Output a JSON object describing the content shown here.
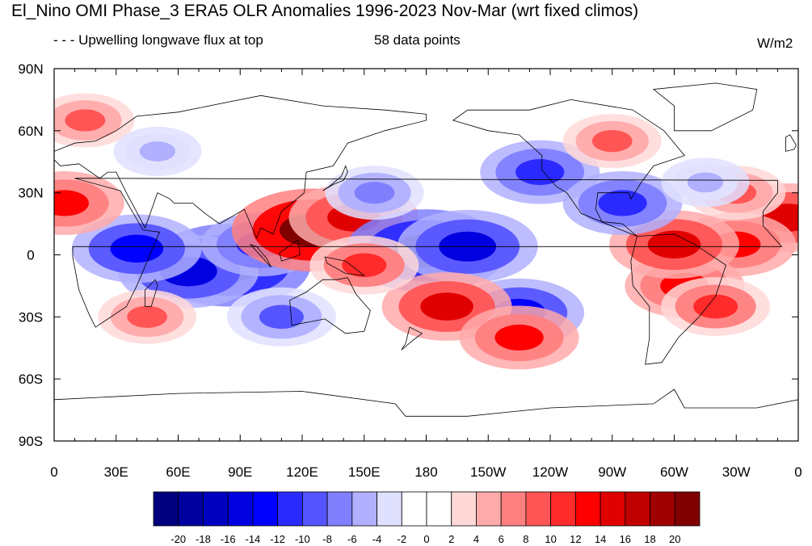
{
  "title": "El_Nino OMI Phase_3 ERA5 OLR Anomalies 1996-2023 Nov-Mar (wrt fixed climos)",
  "subtitle": "- - - Upwelling longwave flux at top",
  "data_points_label": "58 data points",
  "units": "W/m2",
  "axes": {
    "lat_ticks": [
      "90N",
      "60N",
      "30N",
      "0",
      "30S",
      "60S",
      "90S"
    ],
    "lon_ticks": [
      "0",
      "30E",
      "60E",
      "90E",
      "120E",
      "150E",
      "180",
      "150W",
      "120W",
      "90W",
      "60W",
      "30W",
      "0"
    ]
  },
  "colorbar": {
    "labels": [
      "-20",
      "-18",
      "-16",
      "-14",
      "-12",
      "-10",
      "-8",
      "-6",
      "-4",
      "-2",
      "0",
      "2",
      "4",
      "6",
      "8",
      "10",
      "12",
      "14",
      "16",
      "18",
      "20"
    ],
    "colors": [
      "#00007f",
      "#0000a0",
      "#0000c0",
      "#0000e0",
      "#0000ff",
      "#2a2aff",
      "#5555ff",
      "#8080ff",
      "#b0b0ff",
      "#e0e0ff",
      "#ffffff",
      "#ffffff",
      "#ffd8d8",
      "#ffaaaa",
      "#ff8080",
      "#ff5555",
      "#ff2a2a",
      "#ff0000",
      "#e00000",
      "#c00000",
      "#a00000",
      "#800000"
    ]
  },
  "anomalies": [
    {
      "lon": 85,
      "lat": -5,
      "v": -20
    },
    {
      "lon": 65,
      "lat": -8,
      "v": -16
    },
    {
      "lon": 100,
      "lat": 5,
      "v": -12
    },
    {
      "lon": 40,
      "lat": 3,
      "v": -14
    },
    {
      "lon": 125,
      "lat": 12,
      "v": 20
    },
    {
      "lon": 145,
      "lat": 18,
      "v": 14
    },
    {
      "lon": 180,
      "lat": 2,
      "v": -20
    },
    {
      "lon": 200,
      "lat": 4,
      "v": -16
    },
    {
      "lon": 225,
      "lat": -28,
      "v": -14
    },
    {
      "lon": 190,
      "lat": -25,
      "v": 14
    },
    {
      "lon": 225,
      "lat": -40,
      "v": 12
    },
    {
      "lon": 5,
      "lat": 25,
      "v": 12
    },
    {
      "lon": 355,
      "lat": 18,
      "v": 14
    },
    {
      "lon": 330,
      "lat": 5,
      "v": 12
    },
    {
      "lon": 305,
      "lat": -15,
      "v": 12
    },
    {
      "lon": 300,
      "lat": 5,
      "v": 14
    },
    {
      "lon": 235,
      "lat": 40,
      "v": -12
    },
    {
      "lon": 275,
      "lat": 25,
      "v": -12
    },
    {
      "lon": 270,
      "lat": 55,
      "v": 8
    },
    {
      "lon": 150,
      "lat": -5,
      "v": 10
    },
    {
      "lon": 155,
      "lat": 30,
      "v": -8
    },
    {
      "lon": 110,
      "lat": -30,
      "v": -10
    },
    {
      "lon": 45,
      "lat": -30,
      "v": 8
    },
    {
      "lon": 320,
      "lat": -25,
      "v": 10
    },
    {
      "lon": 330,
      "lat": 30,
      "v": 8
    },
    {
      "lon": 15,
      "lat": 65,
      "v": 8
    },
    {
      "lon": 50,
      "lat": 50,
      "v": -6
    },
    {
      "lon": 315,
      "lat": 35,
      "v": -6
    }
  ]
}
